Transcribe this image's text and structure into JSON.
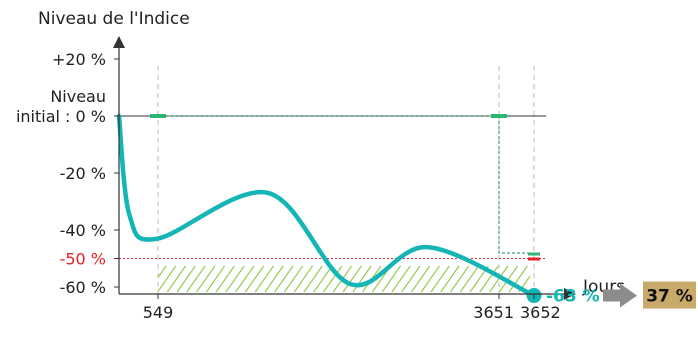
{
  "chart_data": {
    "type": "line",
    "ylabel": "Niveau de l'Indice",
    "xlabel": "Jours",
    "y_ticks": [
      {
        "value": 20,
        "label": "+20 %"
      },
      {
        "value": 0,
        "label": "Niveau initial : 0 %",
        "lines": [
          "Niveau",
          "initial : 0 %"
        ]
      },
      {
        "value": -20,
        "label": "-20 %"
      },
      {
        "value": -40,
        "label": "-40 %"
      },
      {
        "value": -50,
        "label": "-50 %",
        "color": "#e8202a"
      },
      {
        "value": -60,
        "label": "-60 %"
      }
    ],
    "x_ticks": [
      {
        "value": 549,
        "label": "549"
      },
      {
        "value": 3651,
        "label": "3651"
      },
      {
        "value": 3652,
        "label": "3652"
      }
    ],
    "ylim": [
      -73,
      27
    ],
    "series": [
      {
        "color": "#14b5b5",
        "points": [
          [
            0,
            0
          ],
          [
            150,
            -35
          ],
          [
            549,
            -43
          ],
          [
            1550,
            -27
          ],
          [
            2300,
            -59
          ],
          [
            3000,
            -46
          ],
          [
            3652,
            -63
          ]
        ]
      }
    ],
    "barrier": {
      "value": -50,
      "color": "#e8202a"
    },
    "final_value": {
      "value": -63,
      "label": "-63 %",
      "color": "#14b5b5"
    },
    "result": {
      "label": "37 %",
      "color": "#c8a96a"
    },
    "colors": {
      "axis": "#333333",
      "path": "#1a8f5a",
      "hatch": "#8cc63f",
      "arrow": "#8c8c8c"
    }
  }
}
